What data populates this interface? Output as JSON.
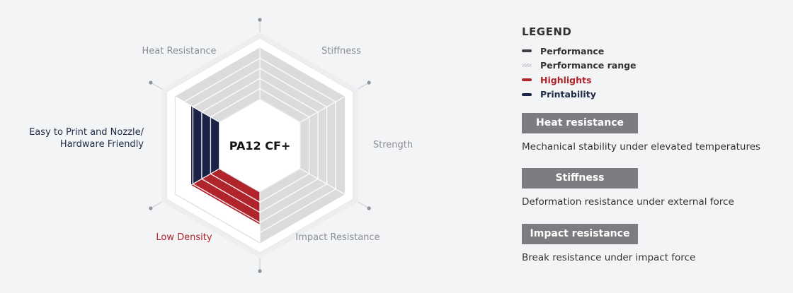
{
  "chart_data": {
    "type": "radar",
    "center_label": "PA12 CF+",
    "axes": [
      {
        "label": "Stiffness",
        "style": "normal"
      },
      {
        "label": "Strength",
        "style": "normal"
      },
      {
        "label": "Impact Resistance",
        "style": "normal"
      },
      {
        "label": "Low Density",
        "style": "highlight"
      },
      {
        "label": "Easy to Print and Nozzle/\nHardware Friendly",
        "style": "printability"
      },
      {
        "label": "Heat Resistance",
        "style": "normal"
      }
    ],
    "levels": 5,
    "performance_range_sectors": [
      "Heat Resistance",
      "Stiffness",
      "Strength",
      "Impact Resistance"
    ],
    "highlight_sectors": [
      "Low Density"
    ],
    "printability_sectors": [
      "Easy to Print and Nozzle/\nHardware Friendly"
    ],
    "colors": {
      "performance": "#3d3f43",
      "performance_range": "#d9dbdd",
      "highlights": "#b0242b",
      "printability": "#1a2347"
    }
  },
  "legend": {
    "title": "LEGEND",
    "items": [
      {
        "label": "Performance",
        "swatch": "performance"
      },
      {
        "label": "Performance range",
        "swatch": "performance_range"
      },
      {
        "label": "Highlights",
        "swatch": "highlights"
      },
      {
        "label": "Printability",
        "swatch": "printability"
      }
    ]
  },
  "descriptions": [
    {
      "title": "Heat resistance",
      "text": "Mechanical stability under elevated temperatures"
    },
    {
      "title": "Stiffness",
      "text": "Deformation resistance under external force"
    },
    {
      "title": "Impact resistance",
      "text": "Break resistance under impact force"
    }
  ]
}
